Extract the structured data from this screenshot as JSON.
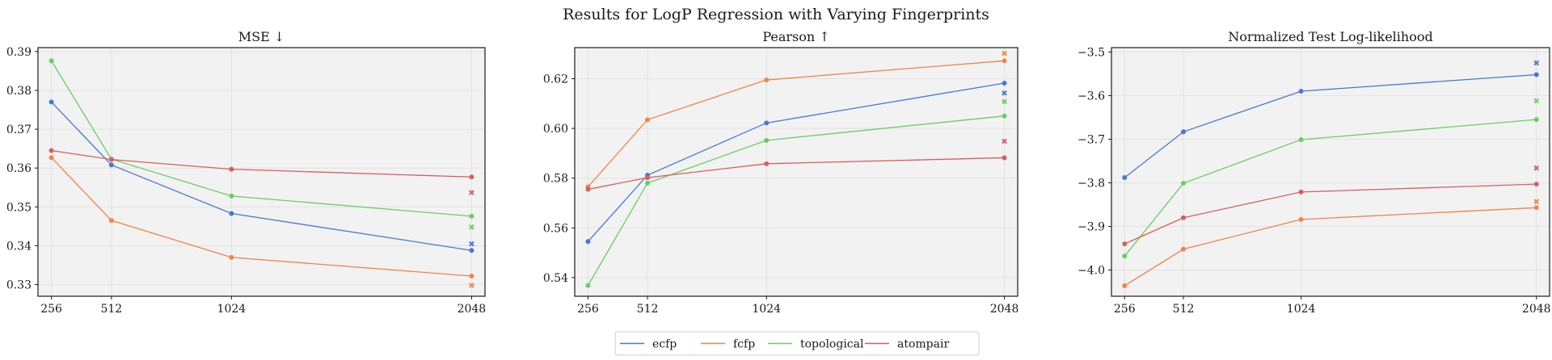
{
  "figure": {
    "title": "Results for LogP Regression with Varying Fingerprints"
  },
  "legend": {
    "placement": "bottom-center",
    "entries": [
      {
        "name": "ecfp",
        "color": "#4878d0"
      },
      {
        "name": "fcfp",
        "color": "#ee854a"
      },
      {
        "name": "topological",
        "color": "#6acc64"
      },
      {
        "name": "atompair",
        "color": "#d65f5f"
      }
    ]
  },
  "chart_data": [
    {
      "type": "line",
      "title": "MSE ↓",
      "x": [
        256,
        512,
        1024,
        2048
      ],
      "x_tick_labels": [
        "256",
        "512",
        "1024",
        "2048"
      ],
      "ylim": [
        0.327,
        0.391
      ],
      "y_ticks": [
        0.33,
        0.34,
        0.35,
        0.36,
        0.37,
        0.38,
        0.39
      ],
      "y_tick_labels": [
        "0.33",
        "0.34",
        "0.35",
        "0.36",
        "0.37",
        "0.38",
        "0.39"
      ],
      "grid": true,
      "series": [
        {
          "name": "ecfp",
          "color": "#4878d0",
          "values": [
            0.377,
            0.3608,
            0.3483,
            0.3388
          ],
          "cross": 0.3405
        },
        {
          "name": "fcfp",
          "color": "#ee854a",
          "values": [
            0.3627,
            0.3465,
            0.337,
            0.3322
          ],
          "cross": 0.3298
        },
        {
          "name": "topological",
          "color": "#6acc64",
          "values": [
            0.3876,
            0.3623,
            0.3528,
            0.3476
          ],
          "cross": 0.3448
        },
        {
          "name": "atompair",
          "color": "#d65f5f",
          "values": [
            0.3645,
            0.3622,
            0.3597,
            0.3577
          ],
          "cross": 0.3537
        }
      ]
    },
    {
      "type": "line",
      "title": "Pearson ↑",
      "x": [
        256,
        512,
        1024,
        2048
      ],
      "x_tick_labels": [
        "256",
        "512",
        "1024",
        "2048"
      ],
      "ylim": [
        0.5325,
        0.6325
      ],
      "y_ticks": [
        0.54,
        0.56,
        0.58,
        0.6,
        0.62
      ],
      "y_tick_labels": [
        "0.54",
        "0.56",
        "0.58",
        "0.60",
        "0.62"
      ],
      "grid": true,
      "series": [
        {
          "name": "ecfp",
          "color": "#4878d0",
          "values": [
            0.5545,
            0.5812,
            0.6022,
            0.6182
          ],
          "cross": 0.6142
        },
        {
          "name": "fcfp",
          "color": "#ee854a",
          "values": [
            0.5765,
            0.6035,
            0.6195,
            0.6272
          ],
          "cross": 0.6302
        },
        {
          "name": "topological",
          "color": "#6acc64",
          "values": [
            0.5368,
            0.578,
            0.5952,
            0.605
          ],
          "cross": 0.6108
        },
        {
          "name": "atompair",
          "color": "#d65f5f",
          "values": [
            0.5755,
            0.5802,
            0.5858,
            0.5882
          ],
          "cross": 0.5948
        }
      ]
    },
    {
      "type": "line",
      "title": "Normalized Test Log-likelihood",
      "x": [
        256,
        512,
        1024,
        2048
      ],
      "x_tick_labels": [
        "256",
        "512",
        "1024",
        "2048"
      ],
      "ylim": [
        -4.06,
        -3.49
      ],
      "y_ticks": [
        -4.0,
        -3.9,
        -3.8,
        -3.7,
        -3.6,
        -3.5
      ],
      "y_tick_labels": [
        "−4.0",
        "−3.9",
        "−3.8",
        "−3.7",
        "−3.6",
        "−3.5"
      ],
      "grid": true,
      "series": [
        {
          "name": "ecfp",
          "color": "#4878d0",
          "values": [
            -3.788,
            -3.683,
            -3.59,
            -3.552
          ],
          "cross": -3.525
        },
        {
          "name": "fcfp",
          "color": "#ee854a",
          "values": [
            -4.036,
            -3.952,
            -3.884,
            -3.857
          ],
          "cross": -3.843
        },
        {
          "name": "topological",
          "color": "#6acc64",
          "values": [
            -3.968,
            -3.801,
            -3.701,
            -3.655
          ],
          "cross": -3.612
        },
        {
          "name": "atompair",
          "color": "#d65f5f",
          "values": [
            -3.94,
            -3.88,
            -3.821,
            -3.803
          ],
          "cross": -3.766
        }
      ]
    }
  ]
}
